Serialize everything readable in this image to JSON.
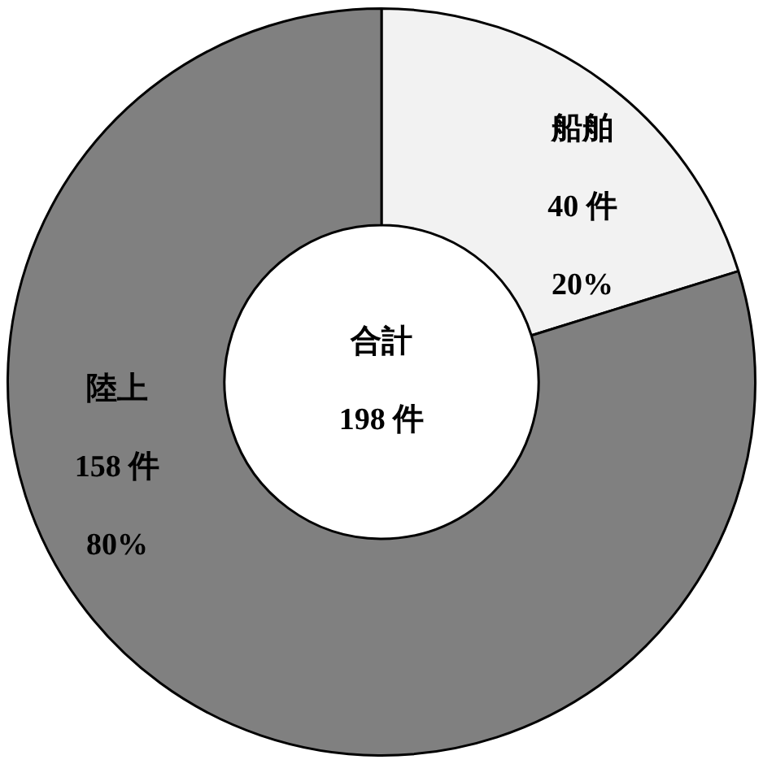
{
  "chart_data": {
    "type": "donut",
    "categories": [
      "船舶",
      "陸上"
    ],
    "values": [
      40,
      158
    ],
    "colors": [
      "#f2f2f2",
      "#808080"
    ],
    "value_labels": [
      "40 件",
      "158 件"
    ],
    "annotations": [
      {
        "text": "20%",
        "x": "船舶"
      },
      {
        "text": "80%",
        "x": "陸上"
      },
      "合計",
      "198 件"
    ],
    "legend": false
  }
}
